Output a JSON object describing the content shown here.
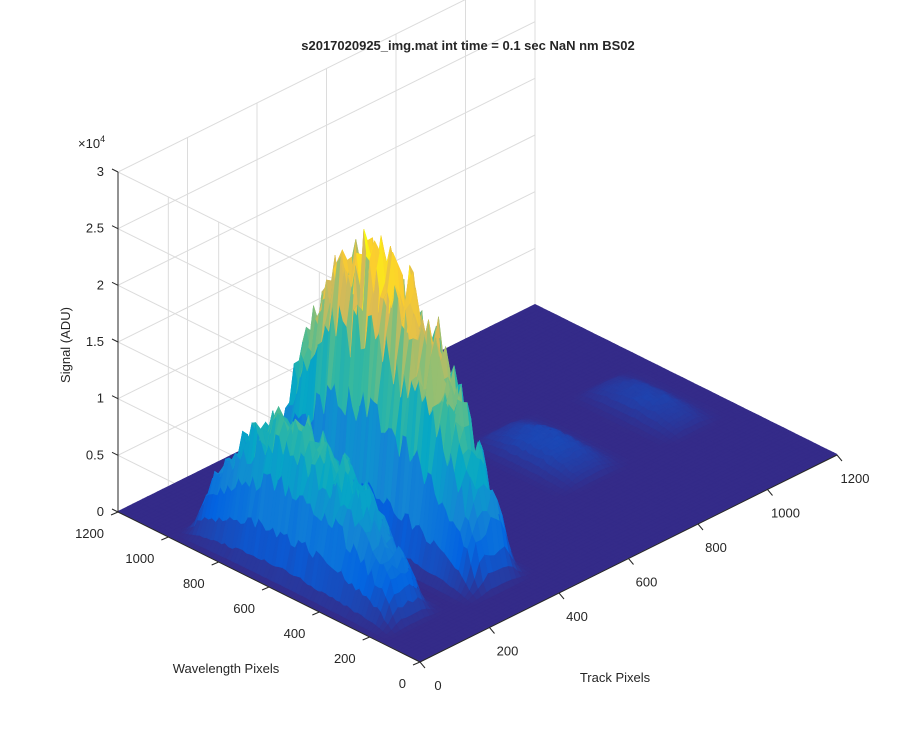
{
  "chart_data": {
    "type": "surface",
    "title": "s2017020925_img.mat int time = 0.1 sec  NaN nm BS02",
    "xlabel": "Track Pixels",
    "ylabel": "Wavelength Pixels",
    "zlabel": "Signal (ADU)",
    "z_exponent_label": "×10",
    "z_exponent_power": "4",
    "xlim": [
      0,
      1200
    ],
    "ylim": [
      0,
      1200
    ],
    "zlim": [
      0,
      30000
    ],
    "x_ticks": [
      "0",
      "200",
      "400",
      "600",
      "800",
      "1000",
      "1200"
    ],
    "y_ticks": [
      "0",
      "200",
      "400",
      "600",
      "800",
      "1000",
      "1200"
    ],
    "z_ticks": [
      "0",
      "0.5",
      "1",
      "1.5",
      "2",
      "2.5",
      "3"
    ],
    "grid": true,
    "colormap": "parula",
    "colormap_stops": [
      "#352a87",
      "#0363e1",
      "#1485d4",
      "#06a7c6",
      "#38b99e",
      "#92bf73",
      "#d9ba56",
      "#fcce2e",
      "#f9fb0e"
    ],
    "peaks": [
      {
        "x_center": 100,
        "x_halfwidth": 55,
        "y_range": [
          150,
          1000
        ],
        "y_center": 620,
        "peak_signal": 12000
      },
      {
        "x_center": 325,
        "x_halfwidth": 60,
        "y_range": [
          120,
          1000
        ],
        "y_center": 640,
        "peak_signal": 23000
      },
      {
        "x_center": 780,
        "x_halfwidth": 70,
        "y_range": [
          360,
          780
        ],
        "y_center": 570,
        "peak_signal": 1500
      },
      {
        "x_center": 1060,
        "x_halfwidth": 60,
        "y_range": [
          360,
          760
        ],
        "y_center": 560,
        "peak_signal": 1200
      }
    ]
  }
}
